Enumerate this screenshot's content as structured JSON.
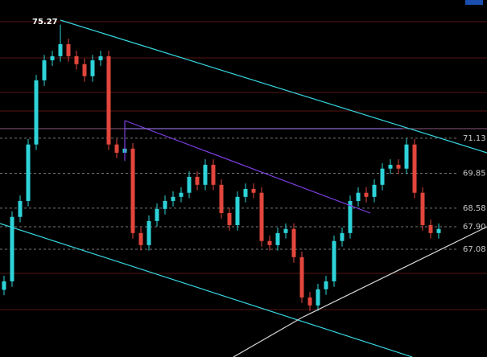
{
  "chart_data": {
    "type": "candlestick",
    "ylim": [
      63.15,
      76.17
    ],
    "yticks": [
      71.13,
      69.85,
      68.58,
      {
        "value": 67.9,
        "label": "67.90"
      },
      67.08
    ],
    "up_color": "#2ed3d9",
    "down_color": "#e2463c",
    "open": [
      65.6,
      65.91,
      68.26,
      68.84,
      70.9,
      73.24,
      73.97,
      74.12,
      74.56,
      74.12,
      73.83,
      73.39,
      73.97,
      74.12,
      70.9,
      70.6,
      70.75,
      67.67,
      67.23,
      68.11,
      68.55,
      68.84,
      68.99,
      69.14,
      69.72,
      69.43,
      70.16,
      69.43,
      68.4,
      67.96,
      68.99,
      69.28,
      69.14,
      67.38,
      67.23,
      67.67,
      67.82,
      66.79,
      65.32,
      65.03,
      65.62,
      65.91,
      67.38,
      67.67,
      68.84,
      69.14,
      68.99,
      69.43,
      70.02,
      70.16,
      70.02,
      70.9,
      69.14,
      67.96,
      67.67
    ],
    "high": [
      66.11,
      68.46,
      69.04,
      71.1,
      73.44,
      74.17,
      74.32,
      75.27,
      74.76,
      74.32,
      74.03,
      74.17,
      74.32,
      74.32,
      71.1,
      70.95,
      70.95,
      67.87,
      68.31,
      68.75,
      69.04,
      69.19,
      69.34,
      69.92,
      69.92,
      70.36,
      70.36,
      69.63,
      68.6,
      69.19,
      69.48,
      69.48,
      69.34,
      67.58,
      67.87,
      68.02,
      68.02,
      66.99,
      65.52,
      65.82,
      66.11,
      67.58,
      67.87,
      69.04,
      69.34,
      69.34,
      69.63,
      70.22,
      70.36,
      70.36,
      71.13,
      71.1,
      69.34,
      68.16,
      68.02
    ],
    "low": [
      65.4,
      65.71,
      68.06,
      68.64,
      70.7,
      73.04,
      73.77,
      73.92,
      73.92,
      73.63,
      73.19,
      73.19,
      73.77,
      70.7,
      70.4,
      70.4,
      67.47,
      67.03,
      67.03,
      67.91,
      68.35,
      68.64,
      68.79,
      68.94,
      69.23,
      69.23,
      69.23,
      68.2,
      67.76,
      67.76,
      68.79,
      68.94,
      67.18,
      67.03,
      67.03,
      67.47,
      66.59,
      65.12,
      64.83,
      64.83,
      65.42,
      65.71,
      67.18,
      67.47,
      68.64,
      68.79,
      68.79,
      69.23,
      69.82,
      69.82,
      69.82,
      68.94,
      67.76,
      67.47,
      67.47
    ],
    "close": [
      65.91,
      68.26,
      68.84,
      70.9,
      73.24,
      73.97,
      74.12,
      74.56,
      74.12,
      73.83,
      73.39,
      73.97,
      74.12,
      70.9,
      70.6,
      70.75,
      67.67,
      67.23,
      68.11,
      68.55,
      68.84,
      68.99,
      69.14,
      69.72,
      69.43,
      70.16,
      69.43,
      68.4,
      67.96,
      68.99,
      69.28,
      69.14,
      67.38,
      67.23,
      67.67,
      67.82,
      66.79,
      65.32,
      65.03,
      65.62,
      65.91,
      67.38,
      67.67,
      68.84,
      69.14,
      68.99,
      69.43,
      70.02,
      70.16,
      70.02,
      70.9,
      69.14,
      67.96,
      67.67,
      67.82
    ]
  }
}
